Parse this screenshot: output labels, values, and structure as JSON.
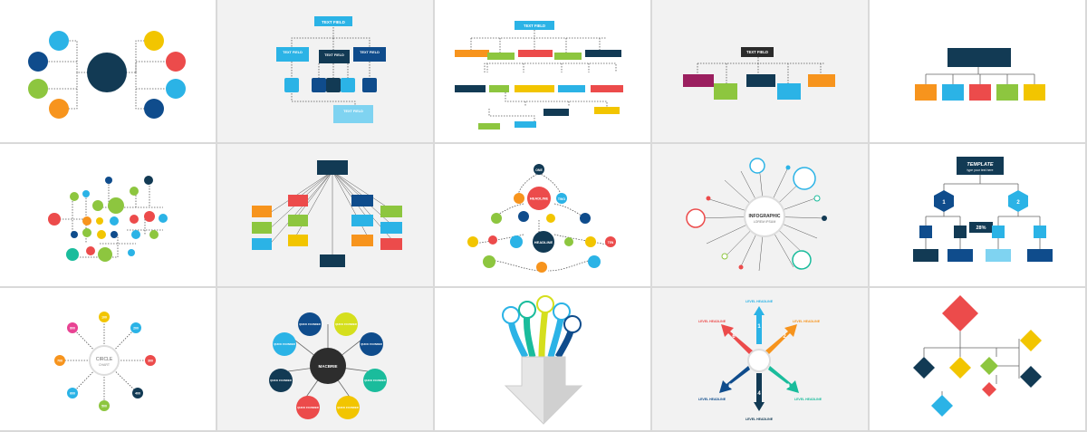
{
  "colors": {
    "navy": "#123a54",
    "blue": "#1e8fd6",
    "cyan": "#2bb3e6",
    "orange": "#f7941d",
    "red": "#ec4b4b",
    "green": "#8dc63f",
    "yellow": "#f2c500",
    "darkblue": "#0f4c8c",
    "teal": "#1abc9c"
  },
  "labels": {
    "text_field": "TEXT FIELD",
    "headline": "HEADLINE",
    "one": "ONE",
    "two": "TWO",
    "ten": "TEN",
    "infographic": "INFOGRAPHIC",
    "lorem_ipsum": "LOREM IPSUM",
    "template": "TEMPLATE",
    "type_text": "type your text here",
    "percent": "28%",
    "circle": "CIRCLE",
    "chart": "CHART",
    "macbrie": "MACBRIE",
    "quick_founder": "QUICK FOUNDER",
    "level_headline": "LEVEL HEADLINE"
  },
  "numbers": {
    "n1": "1",
    "n2": "2",
    "n3": "3",
    "n4": "4",
    "n5": "5",
    "n6": "6",
    "circle_values": [
      "100",
      "200",
      "300",
      "400",
      "500",
      "600",
      "700",
      "800"
    ]
  }
}
